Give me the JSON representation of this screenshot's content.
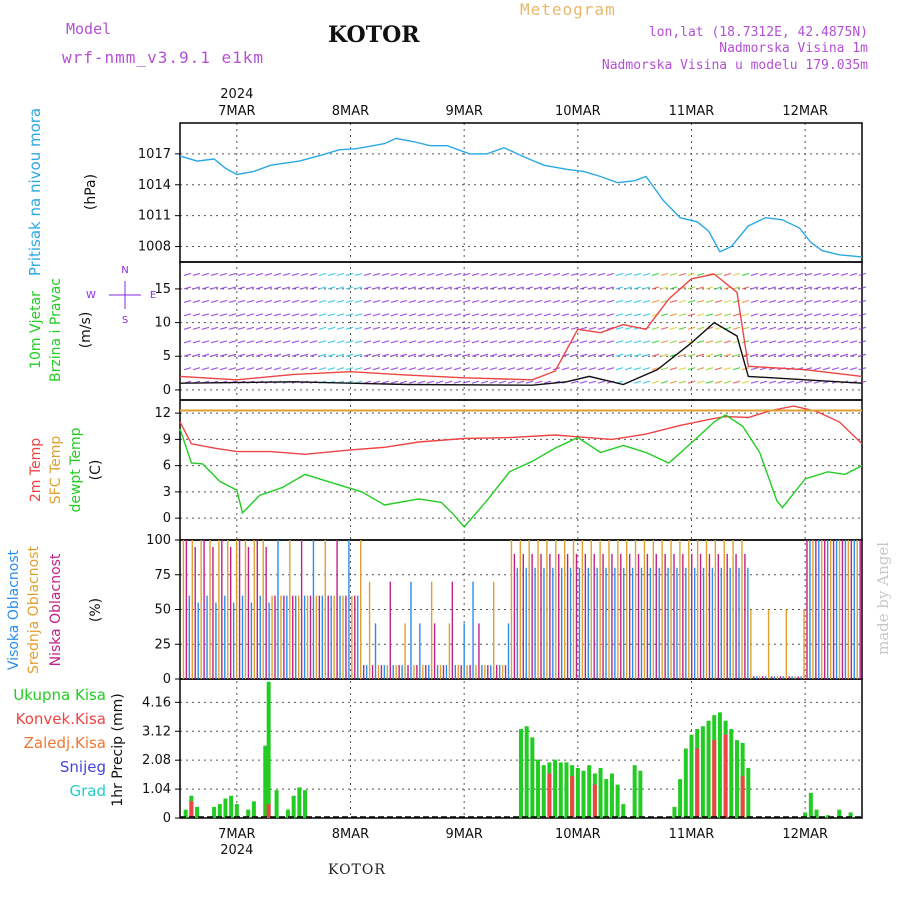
{
  "header": {
    "model_label": "Model",
    "model_name": "wrf-nmm_v3.9.1  e1km",
    "station": "KOTOR",
    "product": "Meteogram",
    "lonlat": "lon,lat (18.7312E, 42.4875N)",
    "elevation": "Nadmorska Visina 1m",
    "model_elevation": "Nadmorska Visina u modelu 179.035m"
  },
  "footer": {
    "station": "KOTOR",
    "watermark": "made by Angel"
  },
  "colors": {
    "pressure": "#2aa8e6",
    "temp2m": "#ee4444",
    "sfc": "#e0a030",
    "dewpt": "#22cc22",
    "wind_purple": "#8a2be2",
    "wind_cyan": "#20c0e8",
    "cloud_high": "#2a8ee8",
    "cloud_mid": "#e0a030",
    "cloud_low": "#c0208a",
    "precip_total": "#22cc22",
    "precip_conv": "#ee4444"
  },
  "time_axis": {
    "year": "2024",
    "days": [
      "7MAR",
      "8MAR",
      "9MAR",
      "10MAR",
      "11MAR",
      "12MAR"
    ],
    "start_offset_days": -0.5,
    "end_offset_days": 5.5
  },
  "chart_data": [
    {
      "type": "line",
      "title": "Pritisak na nivou mora",
      "ylabel": "(hPa)",
      "yticks": [
        1008,
        1011,
        1014,
        1017
      ],
      "ylim": [
        1006.5,
        1020
      ],
      "series": [
        {
          "name": "Pritisak na nivou mora",
          "color": "#2aa8e6",
          "points": [
            [
              -0.5,
              1016.8
            ],
            [
              -0.35,
              1016.3
            ],
            [
              -0.2,
              1016.5
            ],
            [
              -0.1,
              1015.6
            ],
            [
              0.0,
              1015.0
            ],
            [
              0.15,
              1015.3
            ],
            [
              0.3,
              1015.9
            ],
            [
              0.55,
              1016.3
            ],
            [
              0.75,
              1016.9
            ],
            [
              0.9,
              1017.4
            ],
            [
              1.05,
              1017.5
            ],
            [
              1.3,
              1018.0
            ],
            [
              1.4,
              1018.5
            ],
            [
              1.55,
              1018.2
            ],
            [
              1.7,
              1017.8
            ],
            [
              1.85,
              1017.8
            ],
            [
              2.05,
              1017.0
            ],
            [
              2.2,
              1017.0
            ],
            [
              2.35,
              1017.6
            ],
            [
              2.55,
              1016.6
            ],
            [
              2.7,
              1015.9
            ],
            [
              2.9,
              1015.5
            ],
            [
              3.05,
              1015.3
            ],
            [
              3.2,
              1014.8
            ],
            [
              3.35,
              1014.2
            ],
            [
              3.5,
              1014.4
            ],
            [
              3.6,
              1014.8
            ],
            [
              3.75,
              1012.5
            ],
            [
              3.9,
              1010.8
            ],
            [
              4.05,
              1010.4
            ],
            [
              4.15,
              1009.5
            ],
            [
              4.25,
              1007.5
            ],
            [
              4.35,
              1008.0
            ],
            [
              4.5,
              1010.0
            ],
            [
              4.65,
              1010.8
            ],
            [
              4.8,
              1010.6
            ],
            [
              4.95,
              1009.8
            ],
            [
              5.05,
              1008.4
            ],
            [
              5.15,
              1007.6
            ],
            [
              5.3,
              1007.2
            ],
            [
              5.5,
              1007.0
            ]
          ]
        }
      ]
    },
    {
      "type": "line",
      "title": "10m Vjetar Brzina i Pravac",
      "ylabel": "(m/s)",
      "yticks": [
        0,
        5,
        10,
        15
      ],
      "ylim": [
        -1.5,
        19
      ],
      "compass": {
        "n": "N",
        "s": "S",
        "e": "E",
        "w": "W"
      },
      "series": [
        {
          "name": "10m Vjetar",
          "color": "#ee4444",
          "points": [
            [
              -0.5,
              2.0
            ],
            [
              0.0,
              1.5
            ],
            [
              0.5,
              2.3
            ],
            [
              1.0,
              2.7
            ],
            [
              1.5,
              2.2
            ],
            [
              2.0,
              1.8
            ],
            [
              2.6,
              1.5
            ],
            [
              2.8,
              2.8
            ],
            [
              3.0,
              9.0
            ],
            [
              3.2,
              8.5
            ],
            [
              3.4,
              9.7
            ],
            [
              3.6,
              9.0
            ],
            [
              3.8,
              13.5
            ],
            [
              4.0,
              16.5
            ],
            [
              4.2,
              17.2
            ],
            [
              4.4,
              14.5
            ],
            [
              4.5,
              3.5
            ],
            [
              5.0,
              3.0
            ],
            [
              5.5,
              2.0
            ]
          ]
        },
        {
          "name": "",
          "color": "#111111",
          "points": [
            [
              -0.5,
              1.0
            ],
            [
              0.5,
              1.2
            ],
            [
              1.5,
              0.8
            ],
            [
              2.6,
              0.7
            ],
            [
              2.9,
              1.2
            ],
            [
              3.1,
              2.0
            ],
            [
              3.4,
              0.8
            ],
            [
              3.7,
              3.0
            ],
            [
              4.0,
              7.0
            ],
            [
              4.2,
              10.0
            ],
            [
              4.4,
              8.0
            ],
            [
              4.5,
              2.0
            ],
            [
              5.5,
              1.0
            ]
          ]
        }
      ]
    },
    {
      "type": "line",
      "title": "2m Temp / SFC Temp / dewpt Temp",
      "ylabel": "(C)",
      "yticks": [
        0,
        3,
        6,
        9,
        12
      ],
      "ylim": [
        -2.5,
        13.5
      ],
      "series": [
        {
          "name": "2m Temp",
          "color": "#ee4444",
          "points": [
            [
              -0.5,
              11.0
            ],
            [
              -0.4,
              8.5
            ],
            [
              -0.2,
              8.0
            ],
            [
              0.0,
              7.6
            ],
            [
              0.3,
              7.6
            ],
            [
              0.6,
              7.3
            ],
            [
              1.0,
              7.8
            ],
            [
              1.3,
              8.1
            ],
            [
              1.6,
              8.7
            ],
            [
              2.0,
              9.1
            ],
            [
              2.4,
              9.2
            ],
            [
              2.8,
              9.5
            ],
            [
              3.0,
              9.3
            ],
            [
              3.3,
              9.0
            ],
            [
              3.6,
              9.6
            ],
            [
              3.9,
              10.6
            ],
            [
              4.2,
              11.4
            ],
            [
              4.3,
              11.6
            ],
            [
              4.5,
              11.5
            ],
            [
              4.7,
              12.3
            ],
            [
              4.9,
              12.8
            ],
            [
              5.1,
              12.2
            ],
            [
              5.3,
              11.0
            ],
            [
              5.5,
              8.5
            ]
          ]
        },
        {
          "name": "SFC Temp",
          "color": "#e0a030",
          "points": [
            [
              -0.5,
              12.3
            ],
            [
              5.5,
              12.3
            ]
          ]
        },
        {
          "name": "dewpt Temp",
          "color": "#22cc22",
          "points": [
            [
              -0.5,
              10.2
            ],
            [
              -0.4,
              6.3
            ],
            [
              -0.3,
              6.2
            ],
            [
              -0.15,
              4.2
            ],
            [
              0.0,
              3.2
            ],
            [
              0.05,
              0.6
            ],
            [
              0.2,
              2.6
            ],
            [
              0.4,
              3.5
            ],
            [
              0.6,
              5.0
            ],
            [
              0.9,
              3.8
            ],
            [
              1.1,
              3.0
            ],
            [
              1.3,
              1.5
            ],
            [
              1.6,
              2.2
            ],
            [
              1.8,
              1.8
            ],
            [
              1.9,
              0.5
            ],
            [
              2.0,
              -1.0
            ],
            [
              2.2,
              2.0
            ],
            [
              2.4,
              5.3
            ],
            [
              2.6,
              6.5
            ],
            [
              2.8,
              8.0
            ],
            [
              3.0,
              9.2
            ],
            [
              3.2,
              7.5
            ],
            [
              3.4,
              8.3
            ],
            [
              3.6,
              7.5
            ],
            [
              3.8,
              6.3
            ],
            [
              4.0,
              8.6
            ],
            [
              4.2,
              11.0
            ],
            [
              4.3,
              11.8
            ],
            [
              4.45,
              10.5
            ],
            [
              4.6,
              7.5
            ],
            [
              4.75,
              2.0
            ],
            [
              4.8,
              1.2
            ],
            [
              5.0,
              4.5
            ],
            [
              5.2,
              5.3
            ],
            [
              5.35,
              5.0
            ],
            [
              5.5,
              6.0
            ]
          ]
        }
      ]
    },
    {
      "type": "bar",
      "title": "Visoka Oblacnost / Srednja Oblacnost / Niska Oblacnost",
      "ylabel": "(%)",
      "yticks": [
        0,
        25,
        50,
        75,
        100
      ],
      "ylim": [
        0,
        100
      ],
      "series": [
        {
          "name": "Visoka Oblacnost",
          "color": "#2a8ee8"
        },
        {
          "name": "Srednja Oblacnost",
          "color": "#e0a030"
        },
        {
          "name": "Niska Oblacnost",
          "color": "#c0208a"
        }
      ]
    },
    {
      "type": "bar",
      "title": "1hr Precip",
      "ylabel": "1hr Precip (mm)",
      "yticks": [
        0,
        1.04,
        2.08,
        3.12,
        4.16
      ],
      "ylim": [
        0,
        5.0
      ],
      "legend": [
        "Ukupna Kisa",
        "Konvek.Kisa",
        "Zaledj.Kisa",
        "Snijeg",
        "Grad"
      ],
      "legend_colors": [
        "#22cc22",
        "#ee4444",
        "#ee7733",
        "#4444dd",
        "#22cccc"
      ],
      "series": [
        {
          "name": "Ukupna Kisa",
          "color": "#22cc22",
          "points": [
            [
              -0.45,
              0.3
            ],
            [
              -0.4,
              0.8
            ],
            [
              -0.35,
              0.4
            ],
            [
              -0.2,
              0.4
            ],
            [
              -0.15,
              0.5
            ],
            [
              -0.1,
              0.7
            ],
            [
              -0.05,
              0.8
            ],
            [
              0.0,
              0.5
            ],
            [
              0.1,
              0.3
            ],
            [
              0.15,
              0.6
            ],
            [
              0.25,
              2.6
            ],
            [
              0.28,
              4.9
            ],
            [
              0.35,
              1.0
            ],
            [
              0.45,
              0.3
            ],
            [
              0.5,
              0.8
            ],
            [
              0.55,
              1.1
            ],
            [
              0.6,
              1.0
            ],
            [
              2.5,
              3.2
            ],
            [
              2.55,
              3.3
            ],
            [
              2.6,
              2.9
            ],
            [
              2.65,
              2.1
            ],
            [
              2.7,
              1.9
            ],
            [
              2.75,
              2.0
            ],
            [
              2.8,
              2.1
            ],
            [
              2.85,
              2.0
            ],
            [
              2.9,
              2.0
            ],
            [
              2.95,
              1.9
            ],
            [
              3.0,
              1.8
            ],
            [
              3.05,
              1.7
            ],
            [
              3.1,
              1.9
            ],
            [
              3.15,
              1.6
            ],
            [
              3.2,
              1.8
            ],
            [
              3.25,
              1.4
            ],
            [
              3.3,
              1.6
            ],
            [
              3.35,
              1.2
            ],
            [
              3.4,
              0.5
            ],
            [
              3.5,
              1.9
            ],
            [
              3.55,
              1.7
            ],
            [
              3.85,
              0.4
            ],
            [
              3.9,
              1.4
            ],
            [
              3.95,
              2.5
            ],
            [
              4.0,
              3.0
            ],
            [
              4.05,
              3.2
            ],
            [
              4.1,
              3.3
            ],
            [
              4.15,
              3.5
            ],
            [
              4.2,
              3.7
            ],
            [
              4.25,
              3.8
            ],
            [
              4.3,
              3.5
            ],
            [
              4.35,
              3.2
            ],
            [
              4.4,
              2.8
            ],
            [
              4.45,
              2.7
            ],
            [
              4.5,
              1.8
            ],
            [
              5.0,
              0.2
            ],
            [
              5.05,
              0.9
            ],
            [
              5.1,
              0.3
            ],
            [
              5.2,
              0.1
            ],
            [
              5.3,
              0.3
            ],
            [
              5.4,
              0.2
            ]
          ]
        },
        {
          "name": "Konvek.Kisa",
          "color": "#ee4444",
          "points": [
            [
              -0.4,
              0.6
            ],
            [
              0.28,
              0.5
            ],
            [
              2.75,
              1.6
            ],
            [
              2.95,
              1.5
            ],
            [
              3.15,
              1.2
            ],
            [
              4.05,
              2.5
            ],
            [
              4.2,
              2.8
            ],
            [
              4.3,
              3.0
            ],
            [
              4.45,
              1.5
            ]
          ]
        }
      ]
    }
  ]
}
